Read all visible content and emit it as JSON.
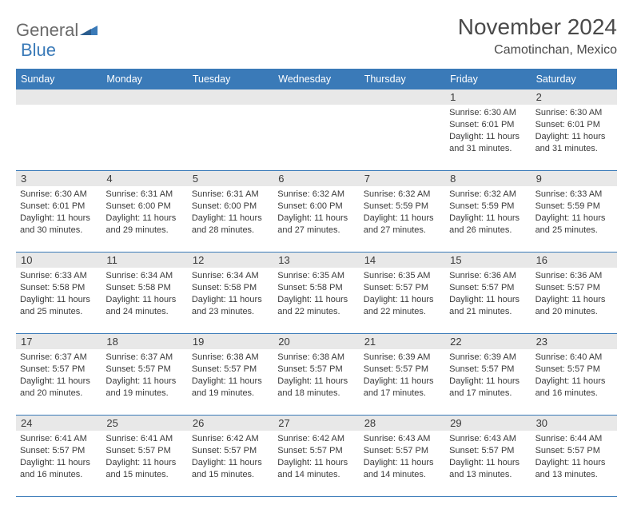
{
  "logo": {
    "text1": "General",
    "text2": "Blue"
  },
  "title": "November 2024",
  "location": "Camotinchan, Mexico",
  "colors": {
    "accent": "#3a7ab8",
    "band": "#e8e8e8",
    "text": "#3a3a3a",
    "header_text": "#4a4a4a"
  },
  "weekdays": [
    "Sunday",
    "Monday",
    "Tuesday",
    "Wednesday",
    "Thursday",
    "Friday",
    "Saturday"
  ],
  "weeks": [
    [
      null,
      null,
      null,
      null,
      null,
      {
        "n": "1",
        "sunrise": "Sunrise: 6:30 AM",
        "sunset": "Sunset: 6:01 PM",
        "dl1": "Daylight: 11 hours",
        "dl2": "and 31 minutes."
      },
      {
        "n": "2",
        "sunrise": "Sunrise: 6:30 AM",
        "sunset": "Sunset: 6:01 PM",
        "dl1": "Daylight: 11 hours",
        "dl2": "and 31 minutes."
      }
    ],
    [
      {
        "n": "3",
        "sunrise": "Sunrise: 6:30 AM",
        "sunset": "Sunset: 6:01 PM",
        "dl1": "Daylight: 11 hours",
        "dl2": "and 30 minutes."
      },
      {
        "n": "4",
        "sunrise": "Sunrise: 6:31 AM",
        "sunset": "Sunset: 6:00 PM",
        "dl1": "Daylight: 11 hours",
        "dl2": "and 29 minutes."
      },
      {
        "n": "5",
        "sunrise": "Sunrise: 6:31 AM",
        "sunset": "Sunset: 6:00 PM",
        "dl1": "Daylight: 11 hours",
        "dl2": "and 28 minutes."
      },
      {
        "n": "6",
        "sunrise": "Sunrise: 6:32 AM",
        "sunset": "Sunset: 6:00 PM",
        "dl1": "Daylight: 11 hours",
        "dl2": "and 27 minutes."
      },
      {
        "n": "7",
        "sunrise": "Sunrise: 6:32 AM",
        "sunset": "Sunset: 5:59 PM",
        "dl1": "Daylight: 11 hours",
        "dl2": "and 27 minutes."
      },
      {
        "n": "8",
        "sunrise": "Sunrise: 6:32 AM",
        "sunset": "Sunset: 5:59 PM",
        "dl1": "Daylight: 11 hours",
        "dl2": "and 26 minutes."
      },
      {
        "n": "9",
        "sunrise": "Sunrise: 6:33 AM",
        "sunset": "Sunset: 5:59 PM",
        "dl1": "Daylight: 11 hours",
        "dl2": "and 25 minutes."
      }
    ],
    [
      {
        "n": "10",
        "sunrise": "Sunrise: 6:33 AM",
        "sunset": "Sunset: 5:58 PM",
        "dl1": "Daylight: 11 hours",
        "dl2": "and 25 minutes."
      },
      {
        "n": "11",
        "sunrise": "Sunrise: 6:34 AM",
        "sunset": "Sunset: 5:58 PM",
        "dl1": "Daylight: 11 hours",
        "dl2": "and 24 minutes."
      },
      {
        "n": "12",
        "sunrise": "Sunrise: 6:34 AM",
        "sunset": "Sunset: 5:58 PM",
        "dl1": "Daylight: 11 hours",
        "dl2": "and 23 minutes."
      },
      {
        "n": "13",
        "sunrise": "Sunrise: 6:35 AM",
        "sunset": "Sunset: 5:58 PM",
        "dl1": "Daylight: 11 hours",
        "dl2": "and 22 minutes."
      },
      {
        "n": "14",
        "sunrise": "Sunrise: 6:35 AM",
        "sunset": "Sunset: 5:57 PM",
        "dl1": "Daylight: 11 hours",
        "dl2": "and 22 minutes."
      },
      {
        "n": "15",
        "sunrise": "Sunrise: 6:36 AM",
        "sunset": "Sunset: 5:57 PM",
        "dl1": "Daylight: 11 hours",
        "dl2": "and 21 minutes."
      },
      {
        "n": "16",
        "sunrise": "Sunrise: 6:36 AM",
        "sunset": "Sunset: 5:57 PM",
        "dl1": "Daylight: 11 hours",
        "dl2": "and 20 minutes."
      }
    ],
    [
      {
        "n": "17",
        "sunrise": "Sunrise: 6:37 AM",
        "sunset": "Sunset: 5:57 PM",
        "dl1": "Daylight: 11 hours",
        "dl2": "and 20 minutes."
      },
      {
        "n": "18",
        "sunrise": "Sunrise: 6:37 AM",
        "sunset": "Sunset: 5:57 PM",
        "dl1": "Daylight: 11 hours",
        "dl2": "and 19 minutes."
      },
      {
        "n": "19",
        "sunrise": "Sunrise: 6:38 AM",
        "sunset": "Sunset: 5:57 PM",
        "dl1": "Daylight: 11 hours",
        "dl2": "and 19 minutes."
      },
      {
        "n": "20",
        "sunrise": "Sunrise: 6:38 AM",
        "sunset": "Sunset: 5:57 PM",
        "dl1": "Daylight: 11 hours",
        "dl2": "and 18 minutes."
      },
      {
        "n": "21",
        "sunrise": "Sunrise: 6:39 AM",
        "sunset": "Sunset: 5:57 PM",
        "dl1": "Daylight: 11 hours",
        "dl2": "and 17 minutes."
      },
      {
        "n": "22",
        "sunrise": "Sunrise: 6:39 AM",
        "sunset": "Sunset: 5:57 PM",
        "dl1": "Daylight: 11 hours",
        "dl2": "and 17 minutes."
      },
      {
        "n": "23",
        "sunrise": "Sunrise: 6:40 AM",
        "sunset": "Sunset: 5:57 PM",
        "dl1": "Daylight: 11 hours",
        "dl2": "and 16 minutes."
      }
    ],
    [
      {
        "n": "24",
        "sunrise": "Sunrise: 6:41 AM",
        "sunset": "Sunset: 5:57 PM",
        "dl1": "Daylight: 11 hours",
        "dl2": "and 16 minutes."
      },
      {
        "n": "25",
        "sunrise": "Sunrise: 6:41 AM",
        "sunset": "Sunset: 5:57 PM",
        "dl1": "Daylight: 11 hours",
        "dl2": "and 15 minutes."
      },
      {
        "n": "26",
        "sunrise": "Sunrise: 6:42 AM",
        "sunset": "Sunset: 5:57 PM",
        "dl1": "Daylight: 11 hours",
        "dl2": "and 15 minutes."
      },
      {
        "n": "27",
        "sunrise": "Sunrise: 6:42 AM",
        "sunset": "Sunset: 5:57 PM",
        "dl1": "Daylight: 11 hours",
        "dl2": "and 14 minutes."
      },
      {
        "n": "28",
        "sunrise": "Sunrise: 6:43 AM",
        "sunset": "Sunset: 5:57 PM",
        "dl1": "Daylight: 11 hours",
        "dl2": "and 14 minutes."
      },
      {
        "n": "29",
        "sunrise": "Sunrise: 6:43 AM",
        "sunset": "Sunset: 5:57 PM",
        "dl1": "Daylight: 11 hours",
        "dl2": "and 13 minutes."
      },
      {
        "n": "30",
        "sunrise": "Sunrise: 6:44 AM",
        "sunset": "Sunset: 5:57 PM",
        "dl1": "Daylight: 11 hours",
        "dl2": "and 13 minutes."
      }
    ]
  ]
}
